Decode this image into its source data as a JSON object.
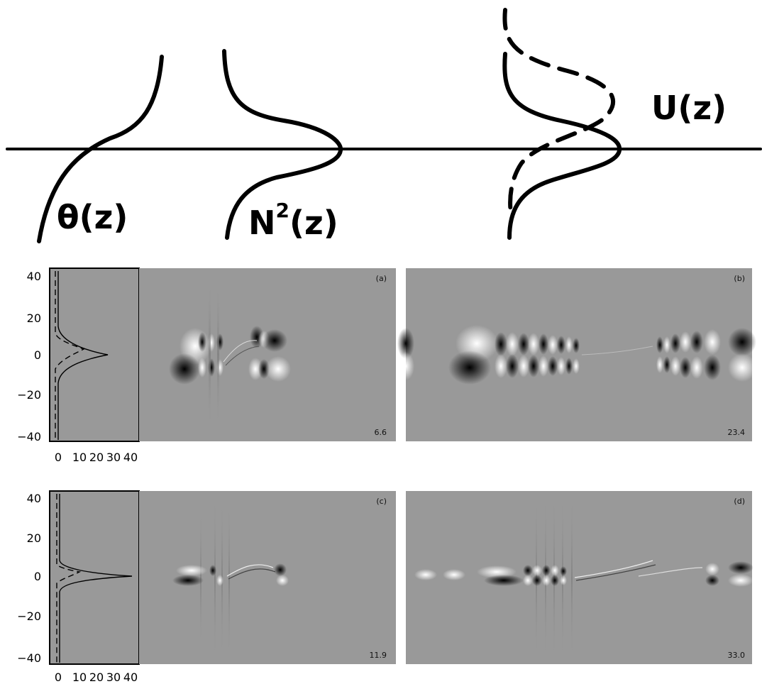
{
  "profiles": {
    "theta_label": "θ(z)",
    "n2_label": "N",
    "n2_sup": "2",
    "n2_suffix": "(z)",
    "u_label": "U(z)"
  },
  "profile_axis": {
    "y_ticks": [
      "40",
      "20",
      "0",
      "−20",
      "−40"
    ],
    "x_ticks": [
      "0",
      "10",
      "20",
      "30",
      "40"
    ]
  },
  "panels": [
    {
      "tag": "(a)",
      "time": "6.6"
    },
    {
      "tag": "(b)",
      "time": "23.4"
    },
    {
      "tag": "(c)",
      "time": "11.9"
    },
    {
      "tag": "(d)",
      "time": "33.0"
    }
  ],
  "colors": {
    "field_gray": "#999999",
    "ink": "#000000"
  }
}
